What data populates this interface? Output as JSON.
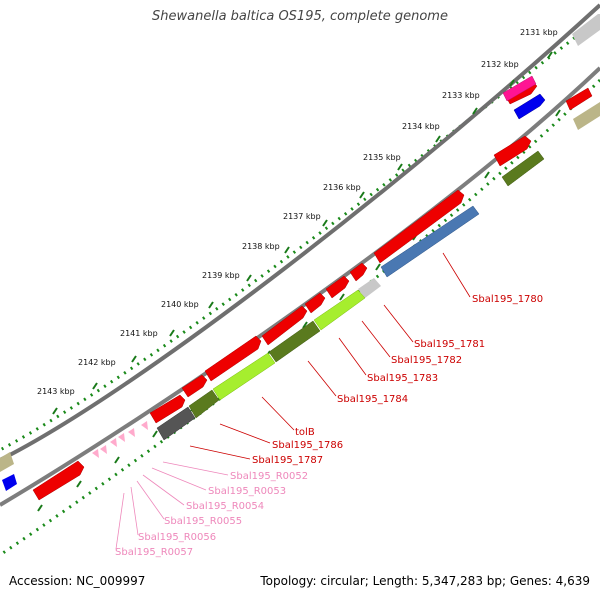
{
  "title": "Shewanella baltica OS195, complete genome",
  "footer": {
    "accession": "Accession: NC_009997",
    "summary": "Topology: circular; Length: 5,347,283 bp; Genes: 4,639"
  },
  "colors": {
    "backbone": "#8a8a8a",
    "dotted_track": "#1a8a1a",
    "gene_label": "#cc0000",
    "rna_label": "#ee88bb",
    "cds": "#ff0000",
    "rna": "#ffaacc"
  },
  "ticks": [
    {
      "kbp": 2131,
      "label": "2131 kbp"
    },
    {
      "kbp": 2132,
      "label": "2132 kbp"
    },
    {
      "kbp": 2133,
      "label": "2133 kbp"
    },
    {
      "kbp": 2134,
      "label": "2134 kbp"
    },
    {
      "kbp": 2135,
      "label": "2135 kbp"
    },
    {
      "kbp": 2136,
      "label": "2136 kbp"
    },
    {
      "kbp": 2137,
      "label": "2137 kbp"
    },
    {
      "kbp": 2138,
      "label": "2138 kbp"
    },
    {
      "kbp": 2139,
      "label": "2139 kbp"
    },
    {
      "kbp": 2140,
      "label": "2140 kbp"
    },
    {
      "kbp": 2141,
      "label": "2141 kbp"
    },
    {
      "kbp": 2142,
      "label": "2142 kbp"
    },
    {
      "kbp": 2143,
      "label": "2143 kbp"
    }
  ],
  "gene_labels": [
    {
      "text": "Sbal195_1780",
      "type": "cds"
    },
    {
      "text": "Sbal195_1781",
      "type": "cds"
    },
    {
      "text": "Sbal195_1782",
      "type": "cds"
    },
    {
      "text": "Sbal195_1783",
      "type": "cds"
    },
    {
      "text": "Sbal195_1784",
      "type": "cds"
    },
    {
      "text": "tolB",
      "type": "cds"
    },
    {
      "text": "Sbal195_1786",
      "type": "cds"
    },
    {
      "text": "Sbal195_1787",
      "type": "cds"
    },
    {
      "text": "Sbal195_R0052",
      "type": "rna"
    },
    {
      "text": "Sbal195_R0053",
      "type": "rna"
    },
    {
      "text": "Sbal195_R0054",
      "type": "rna"
    },
    {
      "text": "Sbal195_R0055",
      "type": "rna"
    },
    {
      "text": "Sbal195_R0056",
      "type": "rna"
    },
    {
      "text": "Sbal195_R0057",
      "type": "rna"
    }
  ]
}
